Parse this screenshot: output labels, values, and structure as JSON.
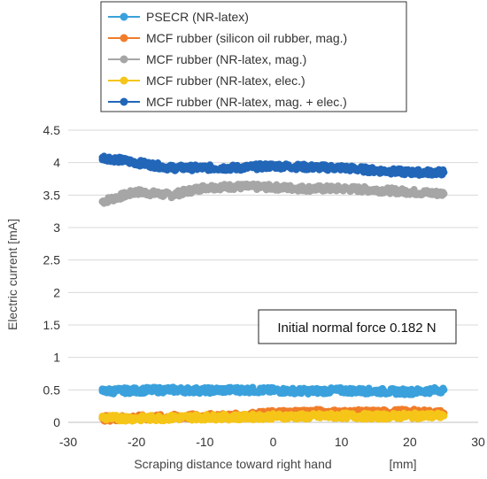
{
  "chart_data": {
    "type": "scatter",
    "title": "",
    "xlabel": "Scraping distance toward right hand",
    "xunit": "[mm]",
    "ylabel": "Electric current   [mA]",
    "xlim": [
      -30,
      30
    ],
    "ylim": [
      0,
      4.5
    ],
    "xticks": [
      "-30",
      "-20",
      "-10",
      "0",
      "10",
      "20",
      "30"
    ],
    "yticks": [
      "0",
      "0.5",
      "1",
      "1.5",
      "2",
      "2.5",
      "3",
      "3.5",
      "4",
      "4.5"
    ],
    "grid": "horizontal",
    "legend_position": "top",
    "annotation": "Initial normal force 0.182  N",
    "series": [
      {
        "name": "PSECR (NR-latex)",
        "color": "#3aa1dc",
        "x": [
          -25,
          -20,
          -15,
          -10,
          -5,
          0,
          5,
          10,
          15,
          20,
          25
        ],
        "y": [
          0.48,
          0.49,
          0.5,
          0.49,
          0.5,
          0.49,
          0.48,
          0.49,
          0.48,
          0.47,
          0.5
        ]
      },
      {
        "name": "MCF rubber (silicon oil rubber, mag.)",
        "color": "#f07d2a",
        "x": [
          -25,
          -20,
          -15,
          -10,
          -5,
          0,
          5,
          10,
          15,
          20,
          25
        ],
        "y": [
          0.06,
          0.07,
          0.08,
          0.09,
          0.1,
          0.14,
          0.16,
          0.15,
          0.15,
          0.16,
          0.14
        ]
      },
      {
        "name": "MCF rubber (NR-latex, mag.)",
        "color": "#a6a6a6",
        "x": [
          -25,
          -20,
          -15,
          -10,
          -5,
          0,
          5,
          10,
          15,
          20,
          25
        ],
        "y": [
          3.4,
          3.55,
          3.5,
          3.62,
          3.63,
          3.62,
          3.6,
          3.6,
          3.58,
          3.55,
          3.52
        ]
      },
      {
        "name": "MCF rubber (NR-latex, elec.)",
        "color": "#f5c518",
        "x": [
          -25,
          -20,
          -15,
          -10,
          -5,
          0,
          5,
          10,
          15,
          20,
          25
        ],
        "y": [
          0.07,
          0.06,
          0.07,
          0.08,
          0.08,
          0.09,
          0.09,
          0.1,
          0.09,
          0.1,
          0.1
        ]
      },
      {
        "name": "MCF rubber (NR-latex, mag. + elec.)",
        "color": "#2266b8",
        "x": [
          -25,
          -20,
          -15,
          -10,
          -5,
          0,
          5,
          10,
          15,
          20,
          25
        ],
        "y": [
          4.08,
          4.0,
          3.92,
          3.92,
          3.92,
          3.95,
          3.93,
          3.92,
          3.88,
          3.85,
          3.85
        ]
      }
    ]
  }
}
